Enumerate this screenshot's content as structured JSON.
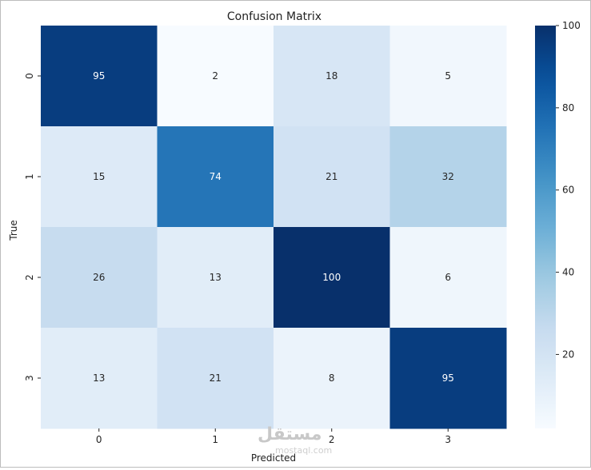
{
  "chart_data": {
    "type": "heatmap",
    "title": "Confusion Matrix",
    "xlabel": "Predicted",
    "ylabel": "True",
    "x_categories": [
      "0",
      "1",
      "2",
      "3"
    ],
    "y_categories": [
      "0",
      "1",
      "2",
      "3"
    ],
    "values": [
      [
        95,
        2,
        18,
        5
      ],
      [
        15,
        74,
        21,
        32
      ],
      [
        26,
        13,
        100,
        6
      ],
      [
        13,
        21,
        8,
        95
      ]
    ],
    "colormap": "Blues",
    "vmin": 2,
    "vmax": 100,
    "colorbar_ticks": [
      20,
      40,
      60,
      80,
      100
    ]
  },
  "watermark": {
    "logo": "مستقل",
    "url": "mostaql.com"
  }
}
